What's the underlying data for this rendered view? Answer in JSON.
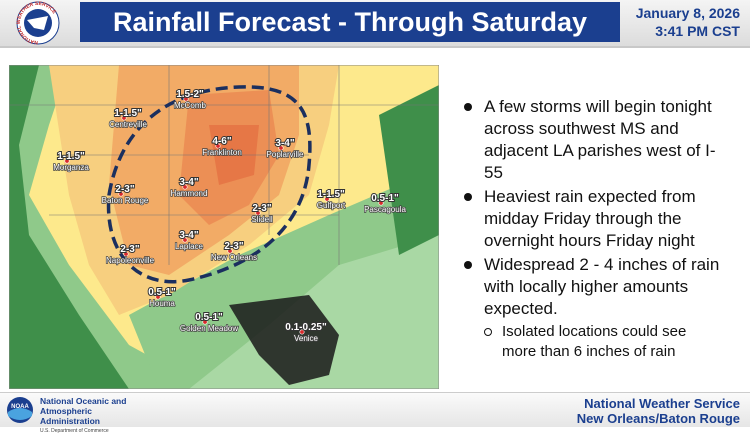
{
  "header": {
    "logo_text": "NATIONAL WEATHER SERVICE",
    "title": "Rainfall Forecast - Through Saturday",
    "date": "January 8, 2026",
    "time": "3:41 PM CST"
  },
  "map": {
    "labels": [
      {
        "amount": "1.5-2\"",
        "place": "McComb"
      },
      {
        "amount": "1-1.5\"",
        "place": "Centreville"
      },
      {
        "amount": "4-6\"",
        "place": "Franklinton"
      },
      {
        "amount": "3-4\"",
        "place": "Poplarville"
      },
      {
        "amount": "1-1.5\"",
        "place": "Morganza"
      },
      {
        "amount": "2-3\"",
        "place": "Baton Rouge"
      },
      {
        "amount": "3-4\"",
        "place": "Hammond"
      },
      {
        "amount": "1-1.5\"",
        "place": "Gulfport"
      },
      {
        "amount": "0.5-1\"",
        "place": "Pascagoula"
      },
      {
        "amount": "2-3\"",
        "place": "Slidell"
      },
      {
        "amount": "3-4\"",
        "place": "Laplace"
      },
      {
        "amount": "2-3\"",
        "place": "Napoleonville"
      },
      {
        "amount": "2-3\"",
        "place": "New Orleans"
      },
      {
        "amount": "0.5-1\"",
        "place": "Houma"
      },
      {
        "amount": "0.5-1\"",
        "place": "Golden Meadow"
      },
      {
        "amount": "0.1-0.25\"",
        "place": "Venice"
      }
    ]
  },
  "bullets": [
    {
      "text": "A few storms will begin tonight across southwest MS and adjacent LA parishes west of I-55"
    },
    {
      "text": "Heaviest rain expected from midday Friday through the overnight hours Friday night"
    },
    {
      "text": "Widespread 2 - 4 inches of rain with locally higher amounts expected.",
      "sub": "Isolated locations could see more than 6 inches of rain"
    }
  ],
  "footer": {
    "logo": "NOAA",
    "agency": "National Oceanic and Atmospheric Administration",
    "department": "U.S. Department of Commerce",
    "office": "National Weather Service",
    "office_unit": "New Orleans/Baton Rouge"
  }
}
